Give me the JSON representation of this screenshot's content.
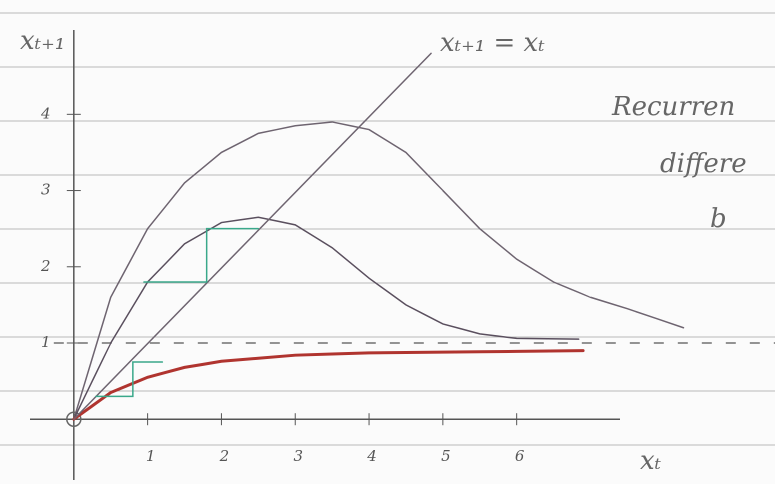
{
  "chart_data": {
    "type": "line",
    "y_label": "xₜ₊₁",
    "x_label": "xₜ",
    "diagonal_label": "xₜ₊₁ = xₜ",
    "annotations": [
      "Recurren",
      "differe",
      "b"
    ],
    "xlim": [
      -1,
      9.5
    ],
    "ylim": [
      -0.85,
      5.5
    ],
    "xticks": [
      1,
      2,
      3,
      4,
      5,
      6
    ],
    "yticks": [
      1,
      2,
      3,
      4
    ],
    "reference_line": 1,
    "series": [
      {
        "color": "#6e6470",
        "x": [
          0,
          0.5,
          1,
          1.5,
          2,
          2.5,
          3,
          3.5,
          4,
          4.5,
          5,
          5.5,
          6,
          6.5,
          7,
          7.5,
          8.26
        ],
        "values": [
          0,
          1.6,
          2.5,
          3.1,
          3.5,
          3.75,
          3.85,
          3.9,
          3.8,
          3.5,
          3.0,
          2.5,
          2.1,
          1.8,
          1.6,
          1.45,
          1.2
        ]
      },
      {
        "color": "#5a4f5e",
        "x": [
          0,
          0.5,
          1,
          1.5,
          2,
          2.5,
          3,
          3.5,
          4,
          4.5,
          5,
          5.5,
          6,
          6.84
        ],
        "values": [
          0,
          1.0,
          1.8,
          2.3,
          2.58,
          2.65,
          2.55,
          2.25,
          1.85,
          1.5,
          1.25,
          1.12,
          1.06,
          1.05
        ]
      },
      {
        "color": "#b0342f",
        "x": [
          0,
          0.5,
          1,
          1.5,
          2,
          3,
          4,
          5,
          6,
          6.9
        ],
        "values": [
          0,
          0.35,
          0.55,
          0.68,
          0.76,
          0.84,
          0.87,
          0.88,
          0.89,
          0.9
        ]
      },
      {
        "color": "#6e6470",
        "x": [
          0,
          4.84
        ],
        "values": [
          0,
          4.8
        ]
      },
      {
        "color": "#3aa88a",
        "x": [
          0.95,
          1.8,
          1.8,
          2.5
        ],
        "values": [
          1.8,
          1.8,
          2.5,
          2.5
        ]
      },
      {
        "color": "#3aa88a",
        "x": [
          0.3,
          0.8,
          0.8,
          1.2
        ],
        "values": [
          0.3,
          0.3,
          0.75,
          0.75
        ]
      }
    ]
  }
}
